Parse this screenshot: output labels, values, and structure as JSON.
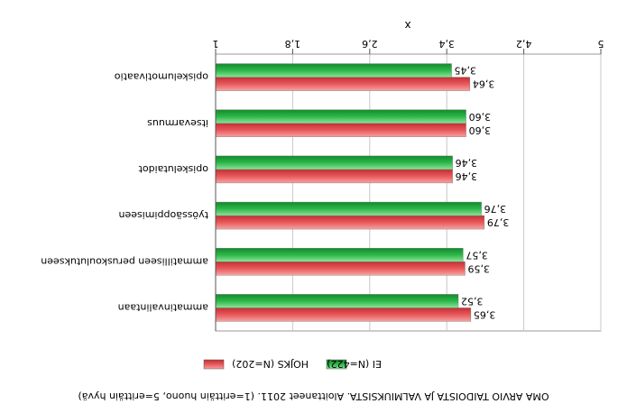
{
  "chart_data": {
    "type": "bar",
    "orientation": "horizontal",
    "title": "",
    "xlabel": "x",
    "caption": "OMA ARVIO TAIDOISTA JA VALMIUKSISTA. Aloittaneet 2011. (1=erittäin huono, 5=erittäin hyvä)",
    "xlim": [
      1,
      5
    ],
    "ticks": [
      1,
      1.8,
      2.6,
      3.4,
      4.2,
      5
    ],
    "tick_labels": [
      "1",
      "1,8",
      "2,6",
      "3,4",
      "4,2",
      "5"
    ],
    "categories": [
      "opiskelumotivaatio",
      "itsevarmuus",
      "opiskelutaidot",
      "työssäoppimiseen",
      "ammatilliseen peruskoulutukseen",
      "ammatinvalintaan"
    ],
    "series": [
      {
        "name": "HOJKS (N=202)",
        "values": [
          3.64,
          3.6,
          3.46,
          3.79,
          3.59,
          3.65
        ],
        "labels": [
          "3,64",
          "3,60",
          "3,46",
          "3,79",
          "3,59",
          "3,65"
        ],
        "color": "#e8585a"
      },
      {
        "name": "EI (N=422)",
        "values": [
          3.45,
          3.6,
          3.46,
          3.76,
          3.57,
          3.52
        ],
        "labels": [
          "3,45",
          "3,60",
          "3,46",
          "3,76",
          "3,57",
          "3,52"
        ],
        "color": "#2db84a"
      }
    ],
    "grid": true,
    "legend_position": "bottom",
    "orientation_note": "rendered rotated 180 degrees"
  }
}
